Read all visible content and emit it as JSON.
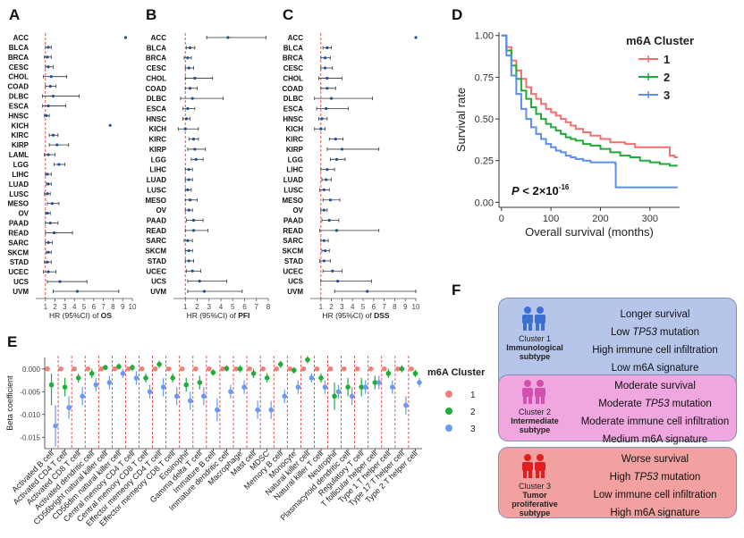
{
  "panels": {
    "A": {
      "label": "A",
      "metric": "OS"
    },
    "B": {
      "label": "B",
      "metric": "PFI"
    },
    "C": {
      "label": "C",
      "metric": "DSS"
    },
    "D": {
      "label": "D"
    },
    "E": {
      "label": "E"
    },
    "F": {
      "label": "F"
    }
  },
  "forest_axis_label": "HR (95%CI) of ",
  "chart_data": [
    {
      "type": "scatter",
      "subtype": "forest",
      "title": "A",
      "xlabel": "HR (95%CI) of OS",
      "xticks": [
        1,
        2,
        3,
        4,
        5,
        6,
        7,
        8,
        9,
        10
      ],
      "xlim": [
        0,
        10
      ],
      "reference_line": 1,
      "categories": [
        "ACC",
        "BLCA",
        "BRCA",
        "CESC",
        "CHOL",
        "COAD",
        "DLBC",
        "ESCA",
        "HNSC",
        "KICH",
        "KIRC",
        "KIRP",
        "LAML",
        "LGG",
        "LIHC",
        "LUAD",
        "LUSC",
        "MESO",
        "OV",
        "PAAD",
        "READ",
        "SARC",
        "SKCM",
        "STAD",
        "UCEC",
        "UCS",
        "UVM"
      ],
      "hr": [
        9.3,
        1.3,
        1.2,
        1.3,
        1.6,
        1.5,
        1.8,
        1.3,
        1.1,
        7.7,
        1.8,
        2.2,
        1.3,
        2.4,
        1.2,
        1.3,
        1.2,
        1.7,
        1.2,
        1.5,
        1.9,
        1.3,
        1.3,
        1.2,
        1.3,
        2.5,
        4.3
      ],
      "lo": [
        9.3,
        1.0,
        0.9,
        1.0,
        0.8,
        1.0,
        0.7,
        0.7,
        0.9,
        7.7,
        1.4,
        1.4,
        0.9,
        1.9,
        1.0,
        1.1,
        0.9,
        1.2,
        1.0,
        1.0,
        1.0,
        1.0,
        1.1,
        0.9,
        0.8,
        1.2,
        1.8
      ],
      "hi": [
        9.3,
        1.6,
        1.6,
        1.8,
        3.2,
        2.1,
        4.5,
        3.1,
        1.4,
        7.7,
        2.3,
        3.4,
        2.0,
        3.0,
        1.6,
        1.6,
        1.5,
        2.4,
        1.5,
        2.3,
        3.8,
        1.7,
        1.6,
        1.6,
        2.1,
        5.3,
        8.6
      ]
    },
    {
      "type": "scatter",
      "subtype": "forest",
      "title": "B",
      "xlabel": "HR (95%CI) of PFI",
      "xticks": [
        1,
        2,
        3,
        4,
        5,
        6,
        7,
        8
      ],
      "xlim": [
        0,
        8
      ],
      "reference_line": 1,
      "categories": [
        "ACC",
        "BLCA",
        "BRCA",
        "CESC",
        "CHOL",
        "COAD",
        "DLBC",
        "ESCA",
        "HNSC",
        "KICH",
        "KIRC",
        "KIRP",
        "LGG",
        "LIHC",
        "LUAD",
        "LUSC",
        "MESO",
        "OV",
        "PAAD",
        "READ",
        "SARC",
        "SKCM",
        "STAD",
        "UCEC",
        "UCS",
        "UVM"
      ],
      "hr": [
        4.6,
        1.4,
        1.2,
        1.3,
        1.8,
        1.4,
        1.6,
        1.2,
        1.1,
        1.0,
        1.7,
        1.8,
        1.9,
        1.3,
        1.3,
        1.2,
        1.4,
        1.3,
        1.7,
        1.7,
        1.2,
        1.3,
        1.3,
        1.6,
        2.2,
        2.6
      ],
      "lo": [
        2.8,
        1.1,
        0.9,
        1.0,
        1.0,
        1.0,
        0.6,
        0.8,
        0.8,
        0.4,
        1.3,
        1.2,
        1.5,
        1.0,
        1.0,
        1.0,
        1.0,
        1.0,
        1.1,
        1.0,
        0.9,
        1.0,
        1.0,
        1.1,
        1.2,
        1.2
      ],
      "hi": [
        7.8,
        1.8,
        1.5,
        1.7,
        3.3,
        2.0,
        4.2,
        1.8,
        1.4,
        2.1,
        2.1,
        2.7,
        2.5,
        1.6,
        1.6,
        1.5,
        2.0,
        1.6,
        2.5,
        2.9,
        1.6,
        1.6,
        1.7,
        2.3,
        4.5,
        5.8
      ]
    },
    {
      "type": "scatter",
      "subtype": "forest",
      "title": "C",
      "xlabel": "HR (95%CI) of DSS",
      "xticks": [
        1,
        2,
        3,
        4,
        5,
        6,
        7,
        8,
        9,
        10
      ],
      "xlim": [
        0,
        10
      ],
      "reference_line": 1,
      "categories": [
        "ACC",
        "BLCA",
        "BRCA",
        "CESC",
        "CHOL",
        "COAD",
        "DLBC",
        "ESCA",
        "HNSC",
        "KICH",
        "KIRC",
        "KIRP",
        "LGG",
        "LIHC",
        "LUAD",
        "LUSC",
        "MESO",
        "OV",
        "PAAD",
        "READ",
        "SARC",
        "SKCM",
        "STAD",
        "UCEC",
        "UCS",
        "UVM"
      ],
      "hr": [
        10.0,
        1.6,
        1.4,
        1.4,
        1.6,
        1.6,
        2.0,
        1.5,
        1.1,
        1.0,
        2.4,
        3.0,
        2.5,
        1.6,
        1.5,
        1.3,
        1.9,
        1.3,
        1.8,
        2.5,
        1.3,
        1.4,
        1.3,
        2.1,
        2.6,
        5.4
      ],
      "lo": [
        10.0,
        1.2,
        1.0,
        1.0,
        0.8,
        1.0,
        0.4,
        0.6,
        0.8,
        0.4,
        1.8,
        1.6,
        1.9,
        1.0,
        1.1,
        0.9,
        1.2,
        1.0,
        1.1,
        0.9,
        1.0,
        1.1,
        0.9,
        1.2,
        1.0,
        2.3
      ],
      "hi": [
        10.0,
        2.0,
        1.9,
        2.1,
        3.0,
        2.4,
        5.9,
        3.6,
        1.6,
        1.4,
        3.1,
        6.5,
        3.3,
        2.3,
        2.0,
        1.8,
        2.8,
        1.6,
        2.7,
        6.5,
        1.7,
        1.8,
        1.9,
        3.0,
        5.8,
        10.0
      ]
    },
    {
      "type": "line",
      "subtype": "kaplan-meier",
      "title": "m6A Cluster",
      "xlabel": "Overall survival (months)",
      "ylabel": "Survival rate",
      "xticks": [
        0,
        100,
        200,
        300
      ],
      "yticks": [
        "0.00",
        "0.25",
        "0.50",
        "0.75",
        "1.00"
      ],
      "xlim": [
        -5,
        360
      ],
      "ylim": [
        -0.03,
        1.02
      ],
      "annotation_main": "P < 2×10",
      "annotation_exp": "-16",
      "series": [
        {
          "name": "1",
          "color": "#f07070",
          "x": [
            0,
            10,
            20,
            30,
            40,
            50,
            60,
            70,
            80,
            90,
            100,
            110,
            120,
            130,
            140,
            150,
            165,
            180,
            200,
            220,
            250,
            270,
            290,
            300,
            320,
            330,
            340,
            350,
            356
          ],
          "y": [
            1.0,
            0.93,
            0.85,
            0.79,
            0.74,
            0.69,
            0.65,
            0.62,
            0.59,
            0.56,
            0.54,
            0.52,
            0.5,
            0.48,
            0.46,
            0.44,
            0.42,
            0.4,
            0.38,
            0.36,
            0.35,
            0.33,
            0.33,
            0.33,
            0.33,
            0.33,
            0.28,
            0.27,
            0.27
          ]
        },
        {
          "name": "2",
          "color": "#22a93a",
          "x": [
            0,
            10,
            20,
            30,
            40,
            50,
            60,
            70,
            80,
            90,
            100,
            110,
            120,
            130,
            140,
            150,
            165,
            180,
            200,
            220,
            240,
            260,
            280,
            300,
            320,
            340,
            356
          ],
          "y": [
            1.0,
            0.91,
            0.82,
            0.74,
            0.67,
            0.62,
            0.57,
            0.53,
            0.5,
            0.47,
            0.45,
            0.43,
            0.41,
            0.39,
            0.38,
            0.37,
            0.35,
            0.34,
            0.32,
            0.3,
            0.28,
            0.27,
            0.25,
            0.24,
            0.23,
            0.22,
            0.22
          ]
        },
        {
          "name": "3",
          "color": "#5b8eef",
          "x": [
            0,
            10,
            20,
            30,
            40,
            50,
            60,
            70,
            80,
            90,
            100,
            110,
            120,
            130,
            140,
            150,
            165,
            180,
            200,
            220,
            230,
            231,
            260,
            300,
            356
          ],
          "y": [
            1.0,
            0.88,
            0.76,
            0.65,
            0.56,
            0.5,
            0.45,
            0.41,
            0.38,
            0.35,
            0.33,
            0.31,
            0.3,
            0.28,
            0.27,
            0.26,
            0.25,
            0.24,
            0.24,
            0.24,
            0.23,
            0.09,
            0.09,
            0.09,
            0.09
          ]
        }
      ]
    },
    {
      "type": "scatter",
      "subtype": "dot-errorbar",
      "title": "m6A Cluster",
      "ylabel": "Beta coefficient",
      "yticks": [
        "0.000",
        "-0.005",
        "-0.010",
        "-0.015"
      ],
      "ylim": [
        -0.0175,
        0.0025
      ],
      "categories": [
        "Activated B cell",
        "Activated CD4 T cell",
        "Activated CD8 T cell",
        "Activated dendritic cell",
        "CD56bright natural killer cell",
        "CD56dim natural killer cell",
        "Central memory CD4 T cell",
        "Central memory CD8 T cell",
        "Effector memeory CD4 T cell",
        "Effector memeory CD8 T cell",
        "Eosinophil",
        "Gamma delta T cell",
        "Immature  B cell",
        "Immature dendritic cell",
        "Macrophage",
        "Mast cell",
        "MDSC",
        "Memory B cell",
        "Monocyte",
        "Natural killer cell",
        "Natural killer T cell",
        "Neutrophil",
        "Plasmacytoid dendritic cell",
        "Regulatory T cell",
        "T follicular helper cell",
        "Type 1 T helper cell",
        "Type 17 T helper cell",
        "Type 2 T helper cell"
      ],
      "series": [
        {
          "name": "1",
          "color": "#f07f7a",
          "values": [
            0,
            0,
            0,
            0,
            0,
            0,
            0,
            0,
            0,
            0,
            0,
            0,
            0,
            0,
            0,
            0,
            0,
            0,
            0,
            0,
            0,
            0,
            0,
            0,
            0,
            0,
            0,
            0
          ],
          "lo": [
            0,
            0,
            0,
            0,
            0,
            0,
            0,
            0,
            0,
            0,
            0,
            0,
            0,
            0,
            0,
            0,
            0,
            0,
            0,
            0,
            0,
            0,
            0,
            0,
            0,
            0,
            0,
            0
          ],
          "hi": [
            0,
            0,
            0,
            0,
            0,
            0,
            0,
            0,
            0,
            0,
            0,
            0,
            0,
            0,
            0,
            0,
            0,
            0,
            0,
            0,
            0,
            0,
            0,
            0,
            0,
            0,
            0,
            0
          ]
        },
        {
          "name": "2",
          "color": "#1fae3a",
          "values": [
            -0.0035,
            -0.004,
            -0.002,
            -0.001,
            0.0003,
            0.0005,
            0.0003,
            -0.002,
            0.001,
            -0.002,
            -0.0035,
            -0.003,
            -0.0008,
            0.0001,
            0.0,
            -0.001,
            -0.002,
            0.001,
            -0.0003,
            0.002,
            -0.002,
            -0.006,
            -0.004,
            -0.004,
            -0.003,
            -0.001,
            0.0,
            -0.001
          ],
          "lo": [
            -0.008,
            -0.006,
            -0.003,
            -0.002,
            -0.0002,
            -0.0002,
            -0.0005,
            -0.003,
            0.0002,
            -0.003,
            -0.005,
            -0.0045,
            -0.0015,
            -0.0006,
            -0.0008,
            -0.002,
            -0.003,
            0.0002,
            -0.001,
            0.0012,
            -0.003,
            -0.009,
            -0.006,
            -0.006,
            -0.0045,
            -0.002,
            -0.0008,
            -0.0018
          ],
          "hi": [
            -0.001,
            -0.002,
            -0.001,
            0.0,
            0.0008,
            0.0012,
            0.001,
            -0.001,
            0.0018,
            -0.001,
            -0.002,
            -0.0015,
            -0.0001,
            0.0008,
            0.0008,
            0.0,
            -0.001,
            0.0018,
            0.0004,
            0.0028,
            -0.001,
            -0.003,
            -0.002,
            -0.002,
            -0.0015,
            0.0,
            0.0008,
            -0.0002
          ]
        },
        {
          "name": "3",
          "color": "#6a9af2",
          "values": [
            -0.0125,
            -0.0085,
            -0.006,
            -0.0035,
            -0.003,
            -0.001,
            -0.002,
            -0.005,
            -0.004,
            -0.006,
            -0.007,
            -0.006,
            -0.009,
            -0.005,
            -0.004,
            -0.009,
            -0.009,
            -0.006,
            -0.004,
            -0.002,
            -0.004,
            -0.005,
            -0.006,
            -0.004,
            -0.003,
            -0.004,
            -0.008,
            -0.003
          ],
          "lo": [
            -0.017,
            -0.011,
            -0.008,
            -0.005,
            -0.0045,
            -0.002,
            -0.0035,
            -0.0065,
            -0.006,
            -0.008,
            -0.009,
            -0.008,
            -0.0115,
            -0.0065,
            -0.0055,
            -0.011,
            -0.011,
            -0.0075,
            -0.0055,
            -0.003,
            -0.0055,
            -0.0065,
            -0.008,
            -0.0055,
            -0.0045,
            -0.0055,
            -0.01,
            -0.004
          ],
          "hi": [
            -0.008,
            -0.006,
            -0.004,
            -0.002,
            -0.0015,
            0.0,
            -0.0005,
            -0.0035,
            -0.002,
            -0.004,
            -0.005,
            -0.004,
            -0.0065,
            -0.0035,
            -0.0025,
            -0.007,
            -0.007,
            -0.0045,
            -0.0025,
            -0.001,
            -0.0025,
            -0.0035,
            -0.004,
            -0.0025,
            -0.0015,
            -0.0025,
            -0.006,
            -0.002
          ]
        }
      ]
    }
  ],
  "clusters": [
    {
      "num": "Cluster 1",
      "subtype": "Immunological",
      "subtype2": "subtype",
      "lines": [
        "Longer survival",
        "Low ",
        "TP53",
        " mutation",
        "High immune cell infiltration",
        "Low m6A signature"
      ],
      "bg": "#b6c5ea",
      "icon": "#3d6fd0"
    },
    {
      "num": "Cluster 2",
      "subtype": "Intermediate",
      "subtype2": "subtype",
      "lines": [
        "Moderate survival",
        "Moderate ",
        "TP53",
        " mutation",
        "Moderate immune cell infiltration",
        "Medium m6A signature"
      ],
      "bg": "#f0a6df",
      "icon": "#d34fb0"
    },
    {
      "num": "Cluster 3",
      "subtype": "Tumor proliferative",
      "subtype2": "subtype",
      "lines": [
        "Worse survival",
        "High ",
        "TP53",
        " mutation",
        "Low immune cell infiltration",
        "High m6A signature"
      ],
      "bg": "#f2a0a0",
      "icon": "#e02020"
    }
  ]
}
